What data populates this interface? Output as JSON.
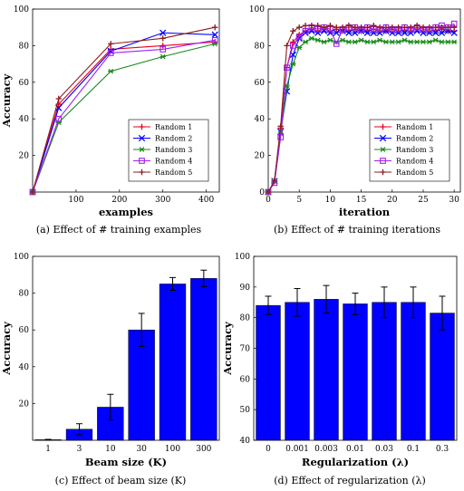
{
  "chart_data": [
    {
      "id": "a",
      "type": "line",
      "caption": "(a) Effect of # training examples",
      "xlabel": "examples",
      "ylabel": "Accuracy",
      "xlim": [
        0,
        430
      ],
      "ylim": [
        0,
        100
      ],
      "xticks": [
        100,
        200,
        300,
        400
      ],
      "yticks": [
        20,
        40,
        60,
        80,
        100
      ],
      "x": [
        0,
        60,
        180,
        300,
        420
      ],
      "legend_position": "bottom-right",
      "series": [
        {
          "name": "Random 1",
          "color": "#e8001b",
          "marker": "plus",
          "values": [
            0,
            48,
            78,
            80,
            82
          ]
        },
        {
          "name": "Random 2",
          "color": "#0000ff",
          "marker": "x",
          "values": [
            0,
            46,
            77,
            87,
            86
          ]
        },
        {
          "name": "Random 3",
          "color": "#1a8a1a",
          "marker": "star",
          "values": [
            0,
            38,
            66,
            74,
            81
          ]
        },
        {
          "name": "Random 4",
          "color": "#a020f0",
          "marker": "square",
          "values": [
            0,
            40,
            76,
            78,
            83
          ]
        },
        {
          "name": "Random 5",
          "color": "#8b1c1c",
          "marker": "plus",
          "values": [
            0,
            51,
            81,
            84,
            90
          ]
        }
      ]
    },
    {
      "id": "b",
      "type": "line",
      "caption": "(b) Effect of # training iterations",
      "xlabel": "iteration",
      "ylabel": "",
      "xlim": [
        0,
        31
      ],
      "ylim": [
        0,
        100
      ],
      "xticks": [
        0,
        5,
        10,
        15,
        20,
        25,
        30
      ],
      "yticks": [
        0,
        20,
        40,
        60,
        80,
        100
      ],
      "x": [
        0,
        1,
        2,
        3,
        4,
        5,
        6,
        7,
        8,
        9,
        10,
        11,
        12,
        13,
        14,
        15,
        16,
        17,
        18,
        19,
        20,
        21,
        22,
        23,
        24,
        25,
        26,
        27,
        28,
        29,
        30
      ],
      "legend_position": "bottom-right",
      "series": [
        {
          "name": "Random 1",
          "color": "#e8001b",
          "marker": "plus",
          "values": [
            0,
            6,
            35,
            68,
            82,
            86,
            88,
            89,
            88,
            89,
            88,
            89,
            88,
            88,
            89,
            88,
            88,
            89,
            88,
            88,
            89,
            88,
            88,
            88,
            89,
            88,
            88,
            88,
            89,
            88,
            88
          ]
        },
        {
          "name": "Random 2",
          "color": "#0000ff",
          "marker": "x",
          "values": [
            0,
            6,
            33,
            55,
            75,
            84,
            87,
            88,
            87,
            88,
            87,
            87,
            88,
            87,
            87,
            88,
            87,
            87,
            87,
            88,
            87,
            87,
            87,
            87,
            88,
            87,
            87,
            87,
            87,
            88,
            87
          ]
        },
        {
          "name": "Random 3",
          "color": "#1a8a1a",
          "marker": "star",
          "values": [
            0,
            6,
            32,
            58,
            70,
            79,
            82,
            84,
            83,
            82,
            83,
            82,
            83,
            82,
            82,
            83,
            82,
            82,
            83,
            82,
            82,
            82,
            83,
            82,
            82,
            82,
            82,
            83,
            82,
            82,
            82
          ]
        },
        {
          "name": "Random 4",
          "color": "#a020f0",
          "marker": "square",
          "values": [
            0,
            5,
            30,
            68,
            80,
            85,
            88,
            90,
            89,
            90,
            89,
            81,
            89,
            90,
            90,
            89,
            90,
            89,
            89,
            90,
            89,
            89,
            90,
            89,
            90,
            89,
            89,
            90,
            91,
            90,
            92
          ]
        },
        {
          "name": "Random 5",
          "color": "#8b1c1c",
          "marker": "plus",
          "values": [
            0,
            6,
            36,
            80,
            88,
            90,
            91,
            91,
            91,
            90,
            91,
            90,
            90,
            91,
            90,
            90,
            90,
            91,
            90,
            90,
            90,
            90,
            90,
            90,
            91,
            90,
            90,
            90,
            90,
            90,
            90
          ]
        }
      ]
    },
    {
      "id": "c",
      "type": "bar",
      "caption": "(c) Effect of beam size (K)",
      "xlabel": "Beam size (K)",
      "ylabel": "Accuracy",
      "ylim": [
        0,
        100
      ],
      "yticks": [
        20,
        40,
        60,
        80,
        100
      ],
      "categories": [
        "1",
        "3",
        "10",
        "30",
        "100",
        "300"
      ],
      "values": [
        0.3,
        6,
        18,
        60,
        85,
        88
      ],
      "errors": [
        0.2,
        3,
        7,
        9,
        3.5,
        4.5
      ],
      "color": "#0000ff"
    },
    {
      "id": "d",
      "type": "bar",
      "caption": "(d) Effect of regularization (λ)",
      "xlabel": "Regularization (λ)",
      "ylabel": "Accuracy",
      "ylim": [
        40,
        100
      ],
      "yticks": [
        40,
        50,
        60,
        70,
        80,
        90,
        100
      ],
      "categories": [
        "0",
        "0.001",
        "0.003",
        "0.01",
        "0.03",
        "0.1",
        "0.3"
      ],
      "values": [
        84,
        85,
        86,
        84.5,
        85,
        85,
        81.5
      ],
      "errors": [
        3,
        4.5,
        4.5,
        3.5,
        5,
        5,
        5.5
      ],
      "color": "#0000ff"
    }
  ]
}
